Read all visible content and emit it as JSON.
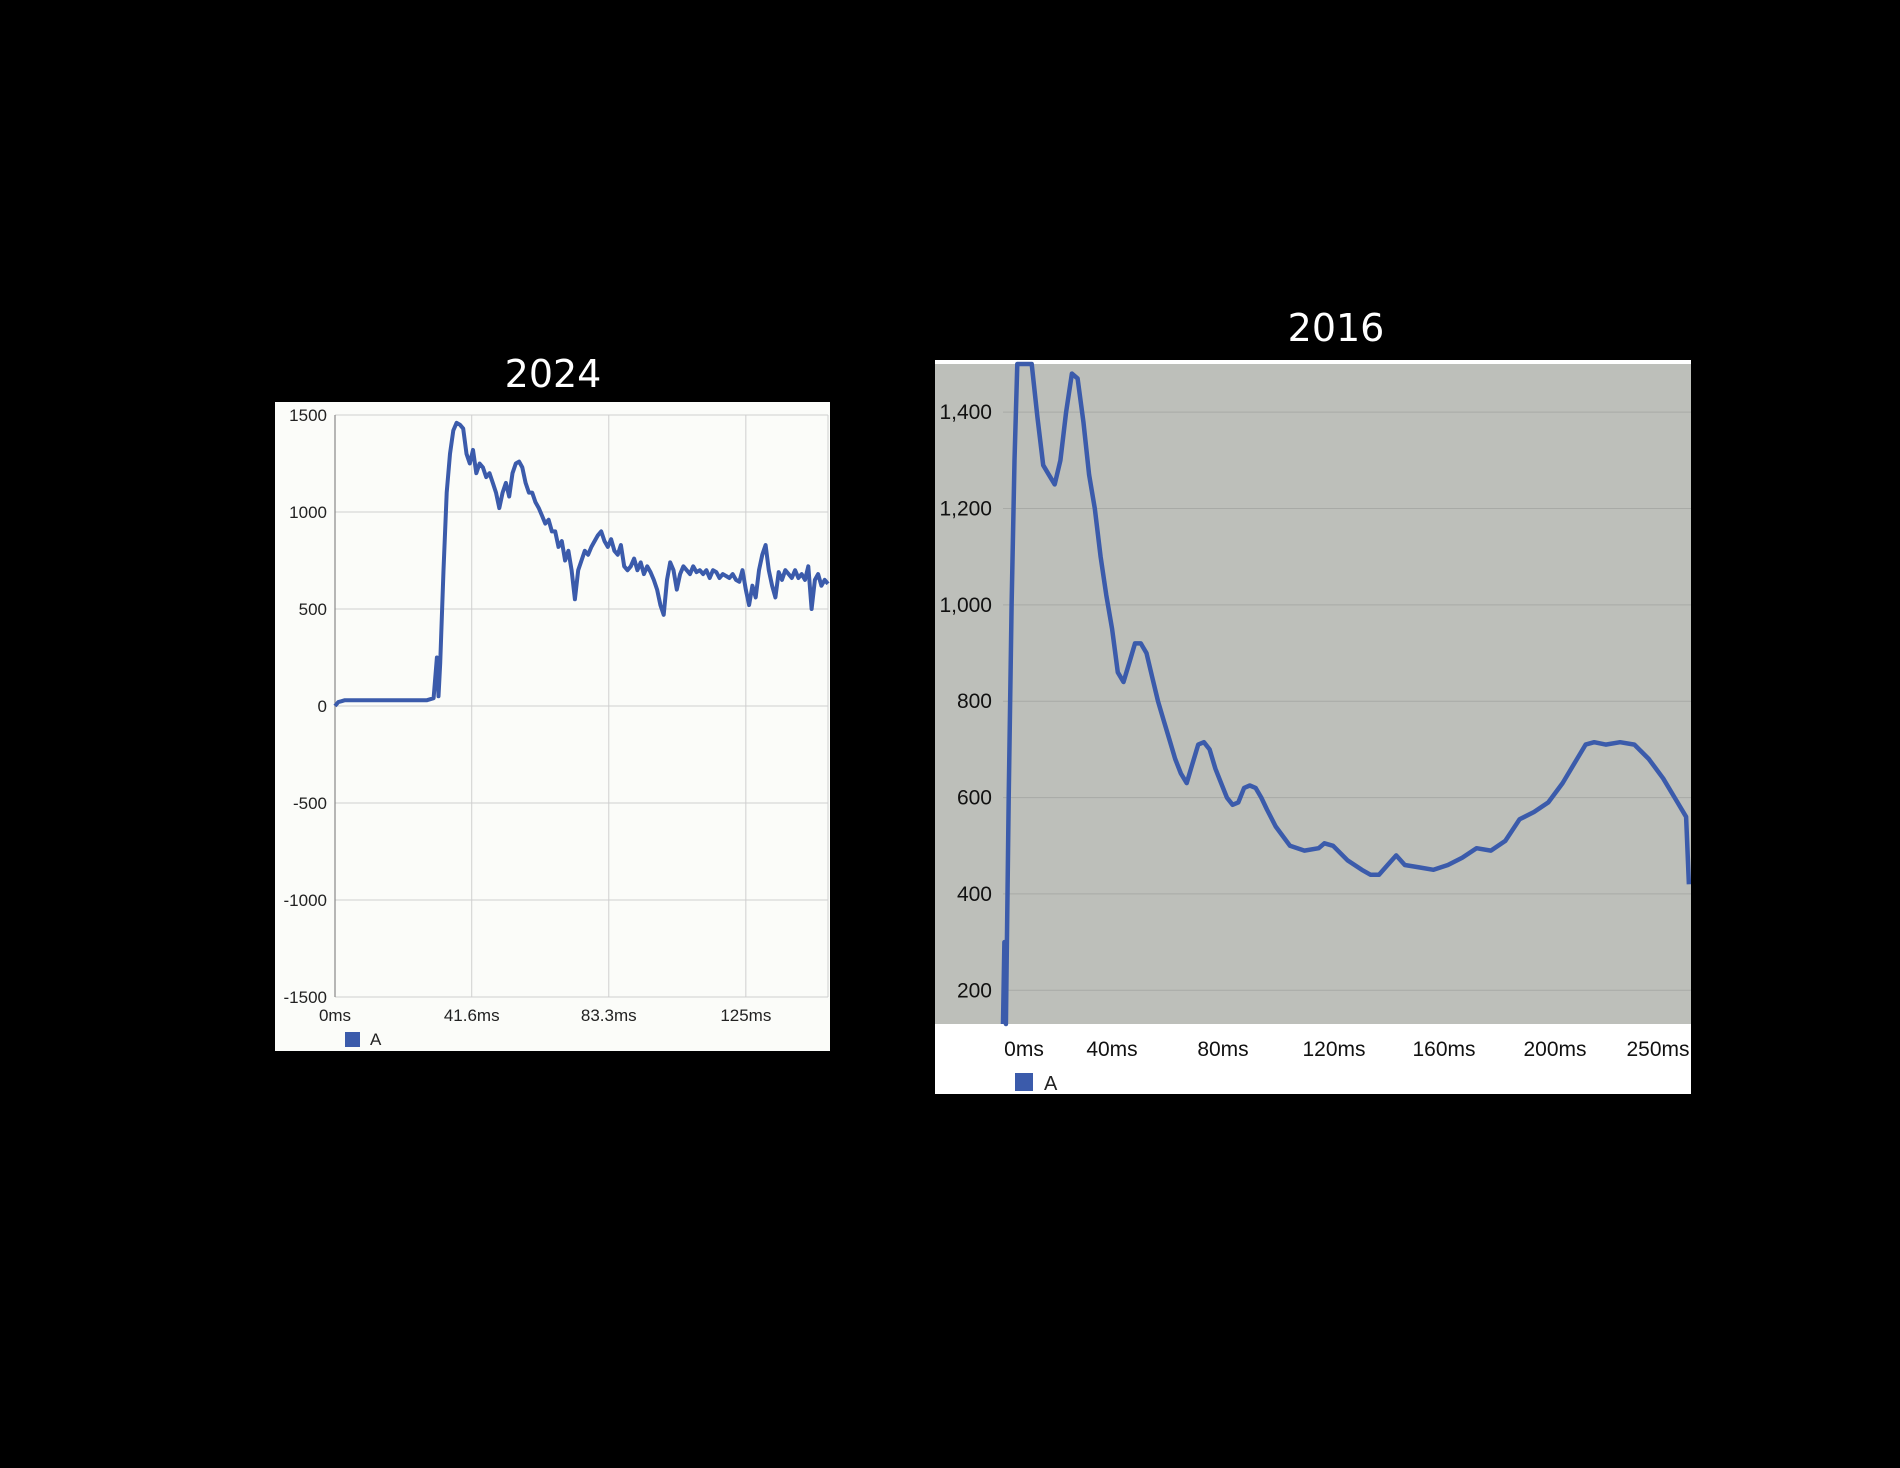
{
  "chart_data": [
    {
      "type": "line",
      "title": "2024",
      "x_ticks": [
        "0ms",
        "41.6ms",
        "83.3ms",
        "125ms"
      ],
      "y_ticks": [
        "1500",
        "1000",
        "500",
        "0",
        "-500",
        "-1000",
        "-1500"
      ],
      "ylim": [
        -1500,
        1500
      ],
      "xlim": [
        0,
        150
      ],
      "grid": true,
      "legend": {
        "position": "bottom-left",
        "entries": [
          "A"
        ]
      },
      "colors": {
        "series": "#3b5bab",
        "background": "#fbfcf9",
        "grid": "#cfcfcf"
      },
      "series": [
        {
          "name": "A",
          "points": [
            [
              0,
              0
            ],
            [
              1,
              20
            ],
            [
              2,
              25
            ],
            [
              3,
              30
            ],
            [
              5,
              30
            ],
            [
              10,
              30
            ],
            [
              20,
              30
            ],
            [
              25,
              30
            ],
            [
              28,
              30
            ],
            [
              30,
              40
            ],
            [
              31,
              250
            ],
            [
              31.5,
              50
            ],
            [
              32,
              220
            ],
            [
              33,
              700
            ],
            [
              34,
              1100
            ],
            [
              35,
              1300
            ],
            [
              36,
              1420
            ],
            [
              37,
              1460
            ],
            [
              38,
              1450
            ],
            [
              39,
              1430
            ],
            [
              40,
              1300
            ],
            [
              41,
              1250
            ],
            [
              42,
              1320
            ],
            [
              43,
              1200
            ],
            [
              44,
              1250
            ],
            [
              45,
              1230
            ],
            [
              46,
              1180
            ],
            [
              47,
              1200
            ],
            [
              48,
              1150
            ],
            [
              49,
              1100
            ],
            [
              50,
              1020
            ],
            [
              51,
              1100
            ],
            [
              52,
              1150
            ],
            [
              53,
              1080
            ],
            [
              54,
              1200
            ],
            [
              55,
              1250
            ],
            [
              56,
              1260
            ],
            [
              57,
              1230
            ],
            [
              58,
              1150
            ],
            [
              59,
              1100
            ],
            [
              60,
              1100
            ],
            [
              61,
              1050
            ],
            [
              62,
              1020
            ],
            [
              63,
              980
            ],
            [
              64,
              940
            ],
            [
              65,
              960
            ],
            [
              66,
              900
            ],
            [
              67,
              900
            ],
            [
              68,
              820
            ],
            [
              69,
              850
            ],
            [
              70,
              750
            ],
            [
              71,
              800
            ],
            [
              72,
              700
            ],
            [
              73,
              550
            ],
            [
              74,
              700
            ],
            [
              75,
              750
            ],
            [
              76,
              800
            ],
            [
              77,
              780
            ],
            [
              78,
              820
            ],
            [
              79,
              850
            ],
            [
              80,
              880
            ],
            [
              81,
              900
            ],
            [
              82,
              850
            ],
            [
              83,
              820
            ],
            [
              84,
              860
            ],
            [
              85,
              800
            ],
            [
              86,
              780
            ],
            [
              87,
              830
            ],
            [
              88,
              720
            ],
            [
              89,
              700
            ],
            [
              90,
              720
            ],
            [
              91,
              760
            ],
            [
              92,
              700
            ],
            [
              93,
              740
            ],
            [
              94,
              680
            ],
            [
              95,
              720
            ],
            [
              96,
              690
            ],
            [
              97,
              650
            ],
            [
              98,
              600
            ],
            [
              99,
              520
            ],
            [
              100,
              470
            ],
            [
              101,
              650
            ],
            [
              102,
              740
            ],
            [
              103,
              700
            ],
            [
              104,
              600
            ],
            [
              105,
              680
            ],
            [
              106,
              720
            ],
            [
              107,
              700
            ],
            [
              108,
              680
            ],
            [
              109,
              720
            ],
            [
              110,
              690
            ],
            [
              111,
              700
            ],
            [
              112,
              680
            ],
            [
              113,
              700
            ],
            [
              114,
              660
            ],
            [
              115,
              700
            ],
            [
              116,
              690
            ],
            [
              117,
              660
            ],
            [
              118,
              680
            ],
            [
              119,
              670
            ],
            [
              120,
              660
            ],
            [
              121,
              680
            ],
            [
              122,
              650
            ],
            [
              123,
              640
            ],
            [
              124,
              700
            ],
            [
              125,
              600
            ],
            [
              126,
              520
            ],
            [
              127,
              620
            ],
            [
              128,
              560
            ],
            [
              129,
              700
            ],
            [
              130,
              780
            ],
            [
              131,
              830
            ],
            [
              132,
              700
            ],
            [
              133,
              620
            ],
            [
              134,
              560
            ],
            [
              135,
              690
            ],
            [
              136,
              650
            ],
            [
              137,
              700
            ],
            [
              138,
              680
            ],
            [
              139,
              660
            ],
            [
              140,
              700
            ],
            [
              141,
              660
            ],
            [
              142,
              680
            ],
            [
              143,
              650
            ],
            [
              144,
              720
            ],
            [
              145,
              500
            ],
            [
              146,
              650
            ],
            [
              147,
              680
            ],
            [
              148,
              620
            ],
            [
              149,
              650
            ],
            [
              150,
              630
            ]
          ]
        }
      ]
    },
    {
      "type": "line",
      "title": "2016",
      "x_ticks": [
        "0ms",
        "40ms",
        "80ms",
        "120ms",
        "160ms",
        "200ms",
        "250ms"
      ],
      "y_ticks": [
        "1,400",
        "1,200",
        "1,000",
        "800",
        "600",
        "400",
        "200"
      ],
      "ylim": [
        130,
        1500
      ],
      "xlim": [
        0,
        250
      ],
      "grid": true,
      "legend": {
        "position": "bottom-left",
        "entries": [
          "A"
        ]
      },
      "colors": {
        "series": "#3b5bab",
        "background": "#bdbfba",
        "grid": "#a8aaa6",
        "frame": "#ffffff"
      },
      "series": [
        {
          "name": "A",
          "points": [
            [
              0,
              130
            ],
            [
              0.5,
              300
            ],
            [
              1,
              130
            ],
            [
              2,
              600
            ],
            [
              3,
              1000
            ],
            [
              4,
              1300
            ],
            [
              5,
              1500
            ],
            [
              10,
              1500
            ],
            [
              12,
              1390
            ],
            [
              14,
              1290
            ],
            [
              16,
              1270
            ],
            [
              18,
              1250
            ],
            [
              20,
              1300
            ],
            [
              22,
              1400
            ],
            [
              24,
              1480
            ],
            [
              26,
              1470
            ],
            [
              28,
              1380
            ],
            [
              30,
              1270
            ],
            [
              32,
              1200
            ],
            [
              34,
              1100
            ],
            [
              36,
              1020
            ],
            [
              38,
              950
            ],
            [
              40,
              860
            ],
            [
              42,
              840
            ],
            [
              44,
              880
            ],
            [
              46,
              920
            ],
            [
              48,
              920
            ],
            [
              50,
              900
            ],
            [
              52,
              850
            ],
            [
              54,
              800
            ],
            [
              56,
              760
            ],
            [
              58,
              720
            ],
            [
              60,
              680
            ],
            [
              62,
              650
            ],
            [
              64,
              630
            ],
            [
              66,
              670
            ],
            [
              68,
              710
            ],
            [
              70,
              715
            ],
            [
              72,
              700
            ],
            [
              74,
              660
            ],
            [
              76,
              630
            ],
            [
              78,
              600
            ],
            [
              80,
              585
            ],
            [
              82,
              590
            ],
            [
              84,
              620
            ],
            [
              86,
              625
            ],
            [
              88,
              620
            ],
            [
              90,
              600
            ],
            [
              92,
              575
            ],
            [
              95,
              540
            ],
            [
              100,
              500
            ],
            [
              105,
              490
            ],
            [
              110,
              495
            ],
            [
              112,
              505
            ],
            [
              115,
              500
            ],
            [
              120,
              470
            ],
            [
              125,
              450
            ],
            [
              128,
              440
            ],
            [
              131,
              440
            ],
            [
              134,
              460
            ],
            [
              137,
              480
            ],
            [
              140,
              460
            ],
            [
              145,
              455
            ],
            [
              150,
              450
            ],
            [
              155,
              460
            ],
            [
              160,
              475
            ],
            [
              165,
              495
            ],
            [
              170,
              490
            ],
            [
              175,
              510
            ],
            [
              180,
              555
            ],
            [
              185,
              570
            ],
            [
              190,
              590
            ],
            [
              195,
              630
            ],
            [
              200,
              680
            ],
            [
              203,
              710
            ],
            [
              206,
              715
            ],
            [
              210,
              710
            ],
            [
              215,
              715
            ],
            [
              220,
              710
            ],
            [
              225,
              680
            ],
            [
              230,
              640
            ],
            [
              235,
              590
            ],
            [
              238,
              560
            ],
            [
              239,
              420
            ]
          ]
        }
      ]
    }
  ]
}
